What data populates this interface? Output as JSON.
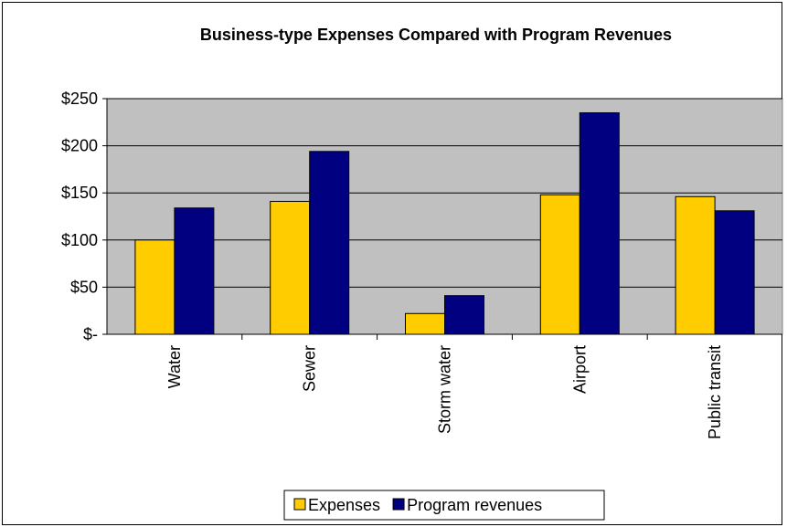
{
  "chart_data": {
    "type": "bar",
    "title": "Business-type Expenses Compared with Program Revenues",
    "categories": [
      "Water",
      "Sewer",
      "Storm water",
      "Airport",
      "Public transit"
    ],
    "series": [
      {
        "name": "Expenses",
        "values": [
          100,
          141,
          22,
          148,
          146
        ],
        "color": "#ffcc00"
      },
      {
        "name": "Program revenues",
        "values": [
          134,
          194,
          41,
          235,
          131
        ],
        "color": "#000080"
      }
    ],
    "ylim": [
      0,
      250
    ],
    "yticks": [
      0,
      50,
      100,
      150,
      200,
      250
    ],
    "ytick_labels": [
      "$-",
      "$50",
      "$100",
      "$150",
      "$200",
      "$250"
    ],
    "plot_background": "#c0c0c0",
    "grid": true,
    "legend_position": "bottom"
  }
}
